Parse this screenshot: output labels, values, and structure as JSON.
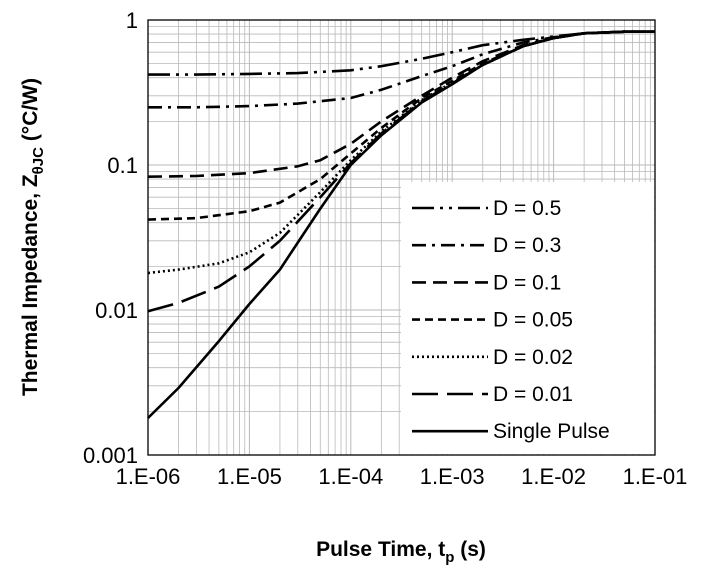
{
  "chart_data": {
    "type": "line",
    "xscale": "log",
    "yscale": "log",
    "xlim": [
      1e-06,
      0.1
    ],
    "ylim": [
      0.001,
      1
    ],
    "grid": true,
    "legend_position": "bottom-right",
    "xlabel": {
      "main": "Pulse Time, t",
      "sub": "p",
      "suffix": " (s)"
    },
    "ylabel": {
      "main": "Thermal Impedance, Z",
      "sub": "θJC",
      "suffix": " (°C/W)"
    },
    "xticks": [
      {
        "value": 1e-06,
        "label": "1.E-06"
      },
      {
        "value": 1e-05,
        "label": "1.E-05"
      },
      {
        "value": 0.0001,
        "label": "1.E-04"
      },
      {
        "value": 0.001,
        "label": "1.E-03"
      },
      {
        "value": 0.01,
        "label": "1.E-02"
      },
      {
        "value": 0.1,
        "label": "1.E-01"
      }
    ],
    "yticks": [
      {
        "value": 0.001,
        "label": "0.001"
      },
      {
        "value": 0.01,
        "label": "0.01"
      },
      {
        "value": 0.1,
        "label": "0.1"
      },
      {
        "value": 1,
        "label": "1"
      }
    ],
    "series": [
      {
        "name": "D = 0.5",
        "dash": "long-dash-dot-dot",
        "x": [
          1e-06,
          3e-06,
          1e-05,
          3e-05,
          0.0001,
          0.0002,
          0.0005,
          0.001,
          0.002,
          0.005,
          0.01,
          0.02,
          0.05,
          0.1
        ],
        "y": [
          0.42,
          0.42,
          0.425,
          0.43,
          0.45,
          0.48,
          0.54,
          0.6,
          0.67,
          0.73,
          0.77,
          0.81,
          0.83,
          0.83
        ]
      },
      {
        "name": "D = 0.3",
        "dash": "dash-dot",
        "x": [
          1e-06,
          3e-06,
          1e-05,
          3e-05,
          0.0001,
          0.0002,
          0.0005,
          0.001,
          0.002,
          0.005,
          0.01,
          0.02,
          0.05,
          0.1
        ],
        "y": [
          0.25,
          0.25,
          0.255,
          0.265,
          0.29,
          0.33,
          0.41,
          0.48,
          0.58,
          0.7,
          0.76,
          0.81,
          0.83,
          0.83
        ]
      },
      {
        "name": "D = 0.1",
        "dash": "dash",
        "x": [
          1e-06,
          3e-06,
          1e-05,
          3e-05,
          5e-05,
          0.0001,
          0.0002,
          0.0005,
          0.001,
          0.002,
          0.005,
          0.01,
          0.02,
          0.05,
          0.1
        ],
        "y": [
          0.083,
          0.084,
          0.088,
          0.098,
          0.108,
          0.14,
          0.2,
          0.3,
          0.4,
          0.52,
          0.67,
          0.75,
          0.81,
          0.83,
          0.83
        ]
      },
      {
        "name": "D = 0.05",
        "dash": "short-dash",
        "x": [
          1e-06,
          3e-06,
          1e-05,
          2e-05,
          5e-05,
          0.0001,
          0.0002,
          0.0005,
          0.001,
          0.002,
          0.005,
          0.01,
          0.02,
          0.05,
          0.1
        ],
        "y": [
          0.042,
          0.043,
          0.048,
          0.055,
          0.08,
          0.12,
          0.18,
          0.29,
          0.38,
          0.5,
          0.66,
          0.75,
          0.81,
          0.83,
          0.83
        ]
      },
      {
        "name": "D = 0.02",
        "dash": "dot",
        "x": [
          1e-06,
          2e-06,
          5e-06,
          1e-05,
          2e-05,
          5e-05,
          0.0001,
          0.0002,
          0.0005,
          0.001,
          0.002,
          0.005,
          0.01,
          0.02,
          0.05,
          0.1
        ],
        "y": [
          0.018,
          0.019,
          0.021,
          0.025,
          0.034,
          0.065,
          0.108,
          0.17,
          0.28,
          0.37,
          0.49,
          0.66,
          0.75,
          0.81,
          0.83,
          0.83
        ]
      },
      {
        "name": "D = 0.01",
        "dash": "long-dash",
        "x": [
          1e-06,
          2e-06,
          5e-06,
          1e-05,
          2e-05,
          5e-05,
          0.0001,
          0.0002,
          0.0005,
          0.001,
          0.002,
          0.005,
          0.01,
          0.02,
          0.05,
          0.1
        ],
        "y": [
          0.0098,
          0.0112,
          0.0145,
          0.02,
          0.03,
          0.06,
          0.103,
          0.165,
          0.275,
          0.365,
          0.49,
          0.66,
          0.75,
          0.81,
          0.83,
          0.83
        ]
      },
      {
        "name": "Single Pulse",
        "dash": "solid",
        "x": [
          1e-06,
          2e-06,
          5e-06,
          1e-05,
          2e-05,
          5e-05,
          0.0001,
          0.0002,
          0.0005,
          0.001,
          0.002,
          0.005,
          0.01,
          0.02,
          0.05,
          0.1
        ],
        "y": [
          0.0018,
          0.0029,
          0.0061,
          0.011,
          0.019,
          0.05,
          0.1,
          0.16,
          0.27,
          0.36,
          0.49,
          0.66,
          0.75,
          0.81,
          0.83,
          0.83
        ]
      }
    ]
  }
}
